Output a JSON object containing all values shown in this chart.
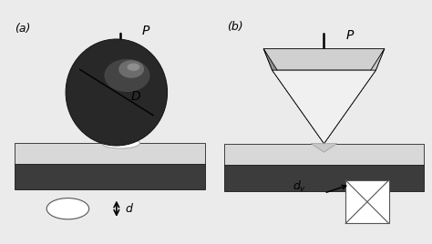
{
  "bg_color": "#ebebeb",
  "label_a": "(a)",
  "label_b": "(b)",
  "force_label": "P",
  "diameter_label": "D",
  "depth_label_a": "d",
  "dark_block": "#3c3c3c",
  "light_surface": "#d8d8d8",
  "lighter_surface": "#e8e8e8",
  "ball_dark": "#282828",
  "pyramid_top": "#d0d0d0",
  "pyramid_left": "#909090",
  "pyramid_right": "#c8c8c8",
  "pyramid_front": "#f0f0f0",
  "arrow_color": "#000000",
  "text_color": "#000000",
  "line_color": "#555555"
}
